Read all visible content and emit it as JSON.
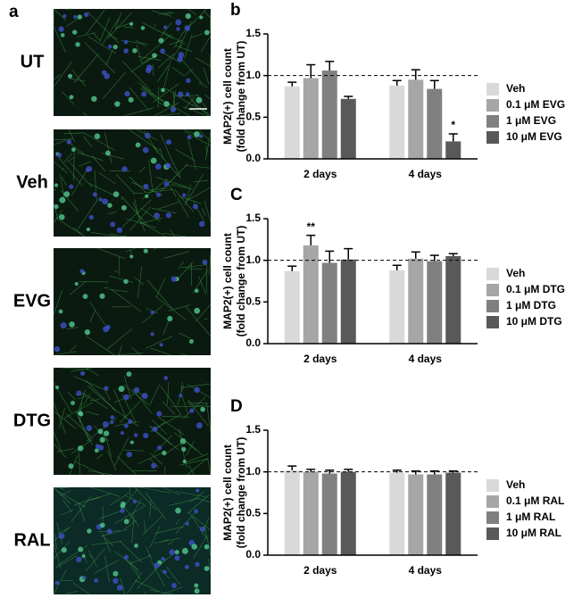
{
  "image_panel": {
    "letter": "a",
    "labels": [
      "UT",
      "Veh",
      "EVG",
      "DTG",
      "RAL"
    ]
  },
  "chart_data": [
    {
      "type": "bar",
      "panel": "b",
      "y_label": [
        "MAP2(+) cell count",
        "(fold change from UT)"
      ],
      "categories": [
        "2 days",
        "4 days"
      ],
      "ylim": [
        0,
        1.5
      ],
      "yticks": [
        {
          "value": 0,
          "label": "0.0"
        },
        0.5,
        {
          "value": 1,
          "label": "1.0"
        },
        1.5
      ],
      "reference_line": 1,
      "series": [
        {
          "name": "Veh",
          "color": "#d9d9d9",
          "values": [
            0.87,
            0.88
          ],
          "errors": [
            0.05,
            0.06
          ],
          "significance": [
            null,
            null
          ]
        },
        {
          "name": "0.1 μM EVG",
          "color": "#a6a6a6",
          "values": [
            0.97,
            0.95
          ],
          "errors": [
            0.16,
            0.12
          ],
          "significance": [
            null,
            null
          ]
        },
        {
          "name": "1 μM EVG",
          "color": "#808080",
          "values": [
            1.06,
            0.84
          ],
          "errors": [
            0.11,
            0.1
          ],
          "significance": [
            null,
            null
          ]
        },
        {
          "name": "10 μM EVG",
          "color": "#595959",
          "values": [
            0.72,
            0.21
          ],
          "errors": [
            0.03,
            0.09
          ],
          "significance": [
            null,
            "*"
          ]
        }
      ]
    },
    {
      "type": "bar",
      "panel": "C",
      "y_label": [
        "MAP2(+) cell count",
        "(fold change from UT)"
      ],
      "categories": [
        "2 days",
        "4 days"
      ],
      "ylim": [
        0,
        1.5
      ],
      "yticks": [
        {
          "value": 0,
          "label": "0.0"
        },
        0.5,
        {
          "value": 1,
          "label": "1.0"
        },
        1.5
      ],
      "reference_line": 1,
      "series": [
        {
          "name": "Veh",
          "color": "#d9d9d9",
          "values": [
            0.87,
            0.88
          ],
          "errors": [
            0.06,
            0.06
          ],
          "significance": [
            null,
            null
          ]
        },
        {
          "name": "0.1 μM DTG",
          "color": "#a6a6a6",
          "values": [
            1.18,
            1.02
          ],
          "errors": [
            0.12,
            0.08
          ],
          "significance": [
            "**",
            null
          ]
        },
        {
          "name": "1 μM DTG",
          "color": "#808080",
          "values": [
            0.97,
            0.99
          ],
          "errors": [
            0.14,
            0.07
          ],
          "significance": [
            null,
            null
          ]
        },
        {
          "name": "10 μM DTG",
          "color": "#595959",
          "values": [
            1.01,
            1.05
          ],
          "errors": [
            0.13,
            0.03
          ],
          "significance": [
            null,
            null
          ]
        }
      ]
    },
    {
      "type": "bar",
      "panel": "D",
      "y_label": [
        "MAP2(+) cell count",
        "(fold change from UT)"
      ],
      "categories": [
        "2 days",
        "4 days"
      ],
      "ylim": [
        0,
        1.5
      ],
      "yticks": [
        {
          "value": 0,
          "label": "0.0"
        },
        0.5,
        {
          "value": 1,
          "label": "1.0"
        },
        1.5
      ],
      "reference_line": 1,
      "series": [
        {
          "name": "Veh",
          "color": "#d9d9d9",
          "values": [
            1.02,
            0.99
          ],
          "errors": [
            0.05,
            0.03
          ],
          "significance": [
            null,
            null
          ]
        },
        {
          "name": "0.1 μM RAL",
          "color": "#a6a6a6",
          "values": [
            1.0,
            0.97
          ],
          "errors": [
            0.03,
            0.04
          ],
          "significance": [
            null,
            null
          ]
        },
        {
          "name": "1 μM RAL",
          "color": "#808080",
          "values": [
            0.98,
            0.97
          ],
          "errors": [
            0.04,
            0.04
          ],
          "significance": [
            null,
            null
          ]
        },
        {
          "name": "10 μM RAL",
          "color": "#595959",
          "values": [
            1.0,
            0.99
          ],
          "errors": [
            0.03,
            0.02
          ],
          "significance": [
            null,
            null
          ]
        }
      ]
    }
  ]
}
